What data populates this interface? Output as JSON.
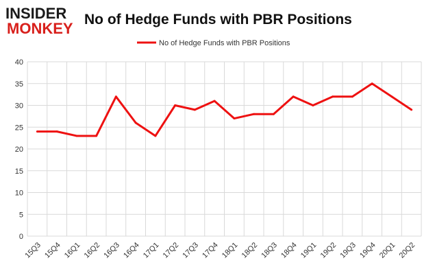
{
  "logo": {
    "line1": "INSIDER",
    "line2": "MONKEY"
  },
  "chart_data": {
    "type": "line",
    "title": "No of Hedge Funds with PBR Positions",
    "categories": [
      "15Q3",
      "15Q4",
      "16Q1",
      "16Q2",
      "16Q3",
      "16Q4",
      "17Q1",
      "17Q2",
      "17Q3",
      "17Q4",
      "18Q1",
      "18Q2",
      "18Q3",
      "18Q4",
      "19Q1",
      "19Q2",
      "19Q3",
      "19Q4",
      "20Q1",
      "20Q2"
    ],
    "series": [
      {
        "name": "No of Hedge Funds with PBR Positions",
        "values": [
          24,
          24,
          23,
          23,
          32,
          26,
          23,
          30,
          29,
          31,
          27,
          28,
          28,
          32,
          30,
          32,
          32,
          35,
          32,
          29
        ],
        "color": "#ee1111"
      }
    ],
    "ylim": [
      0,
      40
    ],
    "yticks": [
      0,
      5,
      10,
      15,
      20,
      25,
      30,
      35,
      40
    ],
    "grid": true,
    "legend": "top-center",
    "colors": {
      "logo_dark": "#1a1a1a",
      "logo_red": "#d8201c",
      "grid": "#d9d9d9",
      "axis_text": "#333333"
    }
  }
}
